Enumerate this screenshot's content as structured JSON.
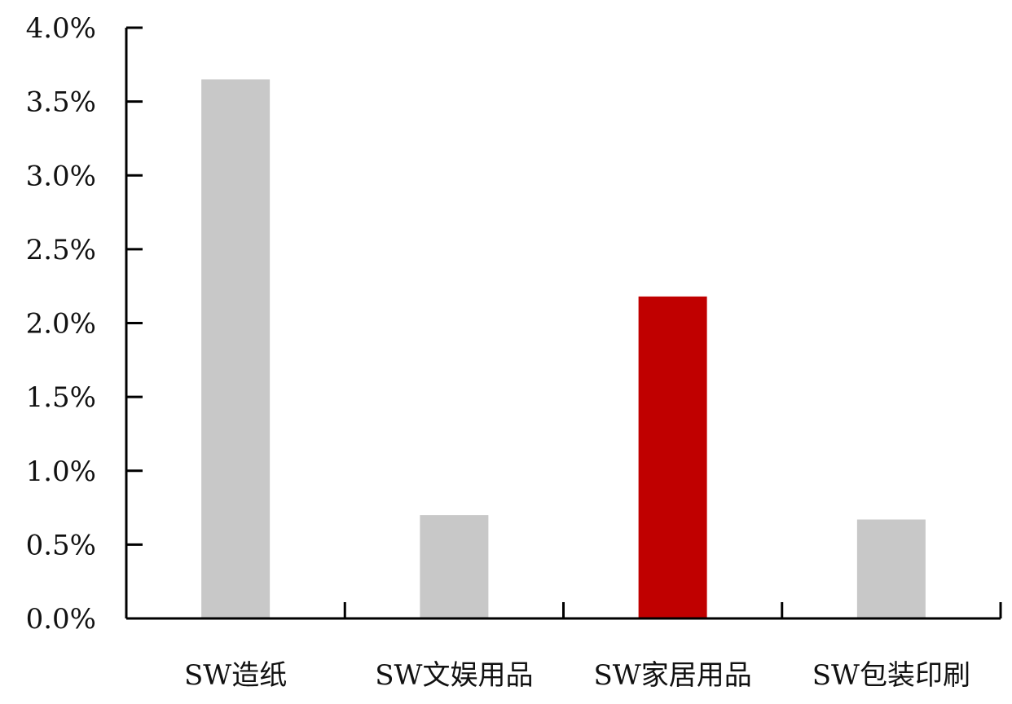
{
  "chart_data": {
    "type": "bar",
    "title": "",
    "xlabel": "",
    "ylabel": "",
    "categories": [
      "SW造纸",
      "SW文娱用品",
      "SW家居用品",
      "SW包装印刷"
    ],
    "values": [
      3.65,
      0.7,
      2.18,
      0.67
    ],
    "unit": "%",
    "ylim": [
      0,
      4.0
    ],
    "yticks": [
      "0.0%",
      "0.5%",
      "1.0%",
      "1.5%",
      "2.0%",
      "2.5%",
      "3.0%",
      "3.5%",
      "4.0%"
    ],
    "ytick_values": [
      0,
      0.5,
      1.0,
      1.5,
      2.0,
      2.5,
      3.0,
      3.5,
      4.0
    ],
    "grid": false,
    "legend": "none",
    "colors": [
      "#c8c8c8",
      "#c8c8c8",
      "#c00000",
      "#c8c8c8"
    ]
  }
}
